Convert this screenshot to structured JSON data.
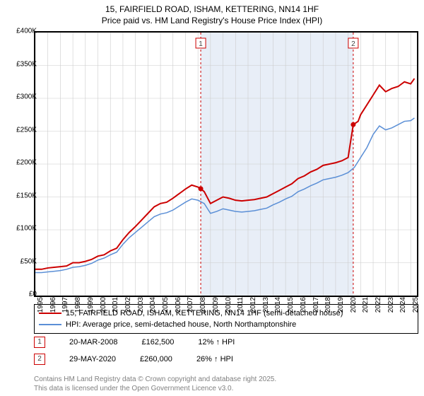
{
  "title_line1": "15, FAIRFIELD ROAD, ISHAM, KETTERING, NN14 1HF",
  "title_line2": "Price paid vs. HM Land Registry's House Price Index (HPI)",
  "chart": {
    "type": "line",
    "background_color": "#ffffff",
    "plot_border_color": "#000000",
    "grid_color": "#cccccc",
    "ylim": [
      0,
      400000
    ],
    "ytick_step": 50000,
    "y_ticks": [
      "£0",
      "£50K",
      "£100K",
      "£150K",
      "£200K",
      "£250K",
      "£300K",
      "£350K",
      "£400K"
    ],
    "xlim": [
      1995,
      2025.5
    ],
    "x_ticks": [
      1995,
      1996,
      1997,
      1998,
      1999,
      2000,
      2001,
      2002,
      2003,
      2004,
      2005,
      2006,
      2007,
      2008,
      2009,
      2010,
      2011,
      2012,
      2013,
      2014,
      2015,
      2016,
      2017,
      2018,
      2019,
      2020,
      2021,
      2022,
      2023,
      2024,
      2025
    ],
    "shade_band": {
      "from": 2008.22,
      "to": 2020.41,
      "color": "#e8eef7"
    },
    "series": [
      {
        "name": "price_paid",
        "color": "#cc0000",
        "width": 2,
        "points": [
          [
            1995,
            40000
          ],
          [
            1995.5,
            40000
          ],
          [
            1996,
            42000
          ],
          [
            1996.5,
            43000
          ],
          [
            1997,
            44000
          ],
          [
            1997.5,
            45000
          ],
          [
            1998,
            50000
          ],
          [
            1998.5,
            50000
          ],
          [
            1999,
            52000
          ],
          [
            1999.5,
            55000
          ],
          [
            2000,
            60000
          ],
          [
            2000.5,
            62000
          ],
          [
            2001,
            68000
          ],
          [
            2001.5,
            72000
          ],
          [
            2002,
            85000
          ],
          [
            2002.5,
            96000
          ],
          [
            2003,
            105000
          ],
          [
            2003.5,
            115000
          ],
          [
            2004,
            125000
          ],
          [
            2004.5,
            135000
          ],
          [
            2005,
            140000
          ],
          [
            2005.5,
            142000
          ],
          [
            2006,
            148000
          ],
          [
            2006.5,
            155000
          ],
          [
            2007,
            162000
          ],
          [
            2007.5,
            168000
          ],
          [
            2008,
            165000
          ],
          [
            2008.22,
            162500
          ],
          [
            2008.5,
            158000
          ],
          [
            2009,
            140000
          ],
          [
            2009.5,
            145000
          ],
          [
            2010,
            150000
          ],
          [
            2010.5,
            148000
          ],
          [
            2011,
            145000
          ],
          [
            2011.5,
            144000
          ],
          [
            2012,
            145000
          ],
          [
            2012.5,
            146000
          ],
          [
            2013,
            148000
          ],
          [
            2013.5,
            150000
          ],
          [
            2014,
            155000
          ],
          [
            2014.5,
            160000
          ],
          [
            2015,
            165000
          ],
          [
            2015.5,
            170000
          ],
          [
            2016,
            178000
          ],
          [
            2016.5,
            182000
          ],
          [
            2017,
            188000
          ],
          [
            2017.5,
            192000
          ],
          [
            2018,
            198000
          ],
          [
            2018.5,
            200000
          ],
          [
            2019,
            202000
          ],
          [
            2019.5,
            205000
          ],
          [
            2020,
            210000
          ],
          [
            2020.41,
            260000
          ],
          [
            2020.8,
            265000
          ],
          [
            2021,
            275000
          ],
          [
            2021.5,
            290000
          ],
          [
            2022,
            305000
          ],
          [
            2022.5,
            320000
          ],
          [
            2023,
            310000
          ],
          [
            2023.5,
            315000
          ],
          [
            2024,
            318000
          ],
          [
            2024.5,
            325000
          ],
          [
            2025,
            322000
          ],
          [
            2025.3,
            330000
          ]
        ]
      },
      {
        "name": "hpi",
        "color": "#5b8fd6",
        "width": 1.5,
        "points": [
          [
            1995,
            35000
          ],
          [
            1995.5,
            35000
          ],
          [
            1996,
            36000
          ],
          [
            1996.5,
            37000
          ],
          [
            1997,
            38000
          ],
          [
            1997.5,
            40000
          ],
          [
            1998,
            43000
          ],
          [
            1998.5,
            44000
          ],
          [
            1999,
            46000
          ],
          [
            1999.5,
            49000
          ],
          [
            2000,
            54000
          ],
          [
            2000.5,
            57000
          ],
          [
            2001,
            62000
          ],
          [
            2001.5,
            66000
          ],
          [
            2002,
            78000
          ],
          [
            2002.5,
            88000
          ],
          [
            2003,
            96000
          ],
          [
            2003.5,
            104000
          ],
          [
            2004,
            112000
          ],
          [
            2004.5,
            120000
          ],
          [
            2005,
            124000
          ],
          [
            2005.5,
            126000
          ],
          [
            2006,
            130000
          ],
          [
            2006.5,
            136000
          ],
          [
            2007,
            142000
          ],
          [
            2007.5,
            147000
          ],
          [
            2008,
            145000
          ],
          [
            2008.5,
            140000
          ],
          [
            2009,
            125000
          ],
          [
            2009.5,
            128000
          ],
          [
            2010,
            132000
          ],
          [
            2010.5,
            130000
          ],
          [
            2011,
            128000
          ],
          [
            2011.5,
            127000
          ],
          [
            2012,
            128000
          ],
          [
            2012.5,
            129000
          ],
          [
            2013,
            131000
          ],
          [
            2013.5,
            133000
          ],
          [
            2014,
            138000
          ],
          [
            2014.5,
            142000
          ],
          [
            2015,
            147000
          ],
          [
            2015.5,
            151000
          ],
          [
            2016,
            158000
          ],
          [
            2016.5,
            162000
          ],
          [
            2017,
            167000
          ],
          [
            2017.5,
            171000
          ],
          [
            2018,
            176000
          ],
          [
            2018.5,
            178000
          ],
          [
            2019,
            180000
          ],
          [
            2019.5,
            183000
          ],
          [
            2020,
            187000
          ],
          [
            2020.5,
            195000
          ],
          [
            2021,
            210000
          ],
          [
            2021.5,
            225000
          ],
          [
            2022,
            245000
          ],
          [
            2022.5,
            258000
          ],
          [
            2023,
            252000
          ],
          [
            2023.5,
            255000
          ],
          [
            2024,
            260000
          ],
          [
            2024.5,
            265000
          ],
          [
            2025,
            266000
          ],
          [
            2025.3,
            270000
          ]
        ]
      }
    ],
    "sale_markers": [
      {
        "num": "1",
        "x": 2008.22,
        "y": 162500,
        "color": "#cc0000"
      },
      {
        "num": "2",
        "x": 2020.41,
        "y": 260000,
        "color": "#cc0000"
      }
    ]
  },
  "legend": {
    "items": [
      {
        "color": "#cc0000",
        "width": 2.5,
        "label": "15, FAIRFIELD ROAD, ISHAM, KETTERING, NN14 1HF (semi-detached house)"
      },
      {
        "color": "#5b8fd6",
        "width": 1.5,
        "label": "HPI: Average price, semi-detached house, North Northamptonshire"
      }
    ]
  },
  "sales": [
    {
      "num": "1",
      "color": "#cc0000",
      "date": "20-MAR-2008",
      "price": "£162,500",
      "pct": "12% ↑ HPI"
    },
    {
      "num": "2",
      "color": "#cc0000",
      "date": "29-MAY-2020",
      "price": "£260,000",
      "pct": "26% ↑ HPI"
    }
  ],
  "footer_line1": "Contains HM Land Registry data © Crown copyright and database right 2025.",
  "footer_line2": "This data is licensed under the Open Government Licence v3.0."
}
